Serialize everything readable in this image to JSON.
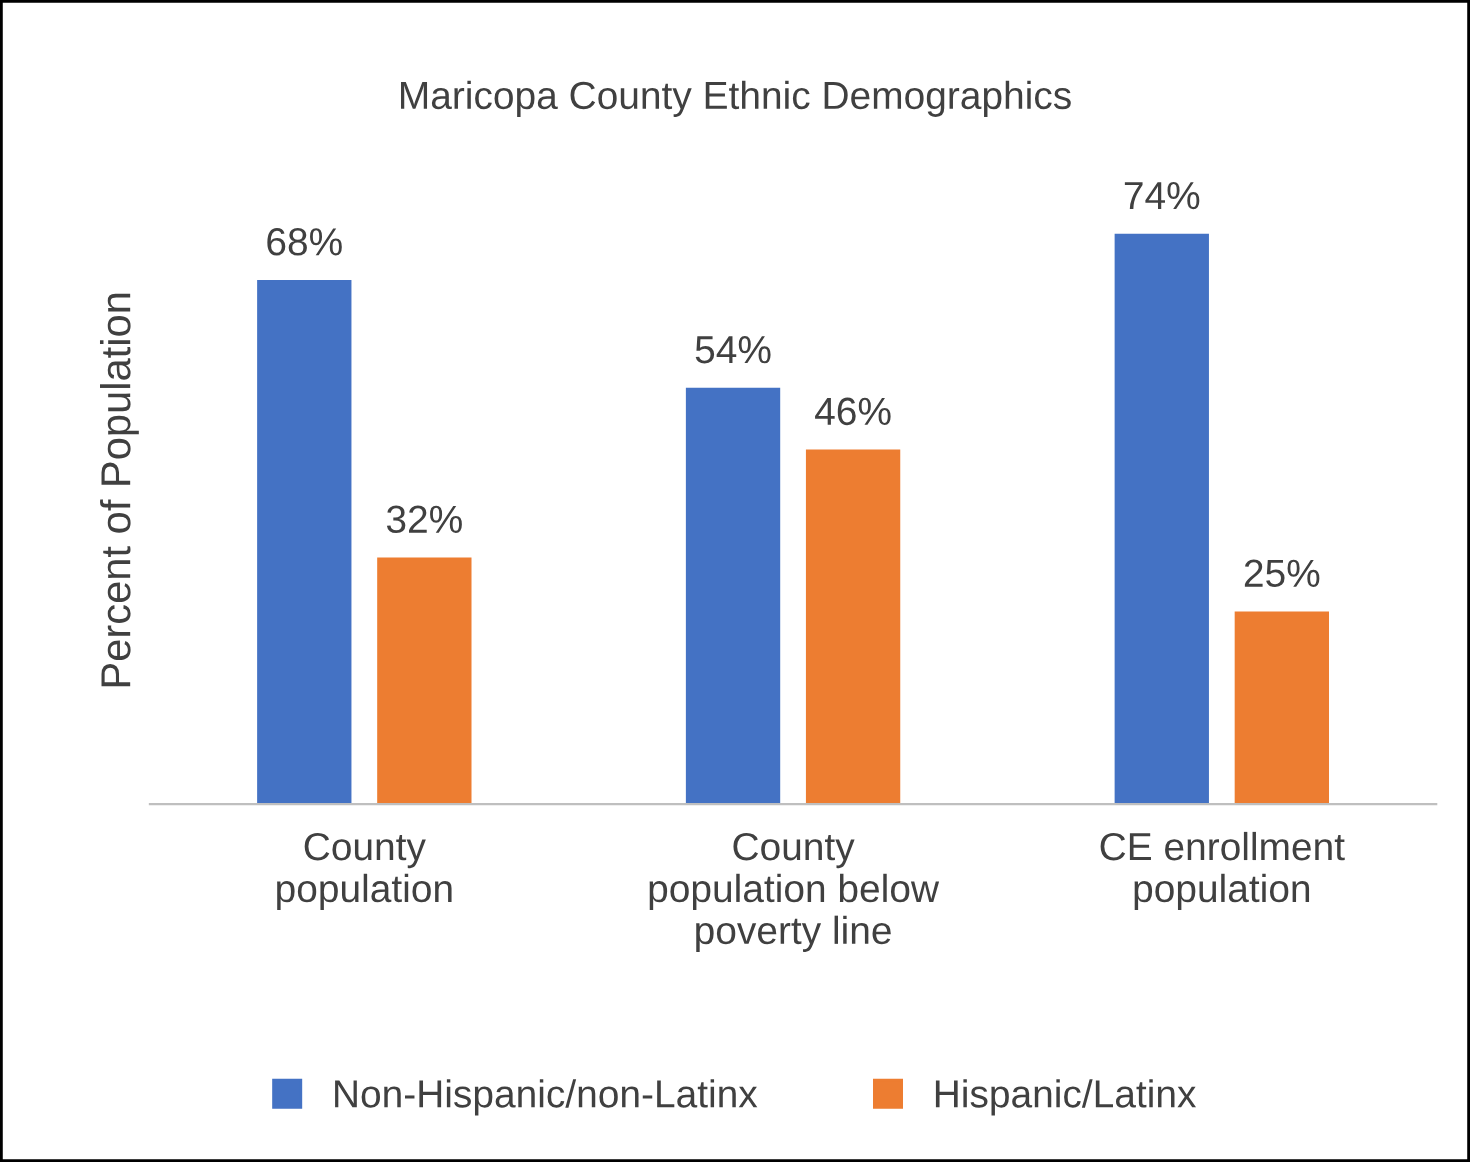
{
  "chart_data": {
    "type": "bar",
    "title": "Maricopa County Ethnic Demographics",
    "ylabel": "Percent of Population",
    "categories": [
      "County\npopulation",
      "County\npopulation below\npoverty line",
      "CE enrollment\npopulation"
    ],
    "series": [
      {
        "name": "Non-Hispanic/non-Latinx",
        "color": "#4472c4",
        "values": [
          68,
          54,
          74
        ],
        "value_labels": [
          "68%",
          "54%",
          "74%"
        ]
      },
      {
        "name": "Hispanic/Latinx",
        "color": "#ed7d31",
        "values": [
          32,
          46,
          25
        ],
        "value_labels": [
          "32%",
          "46%",
          "25%"
        ]
      }
    ],
    "tick_labels": "x",
    "legend": "bottom"
  }
}
